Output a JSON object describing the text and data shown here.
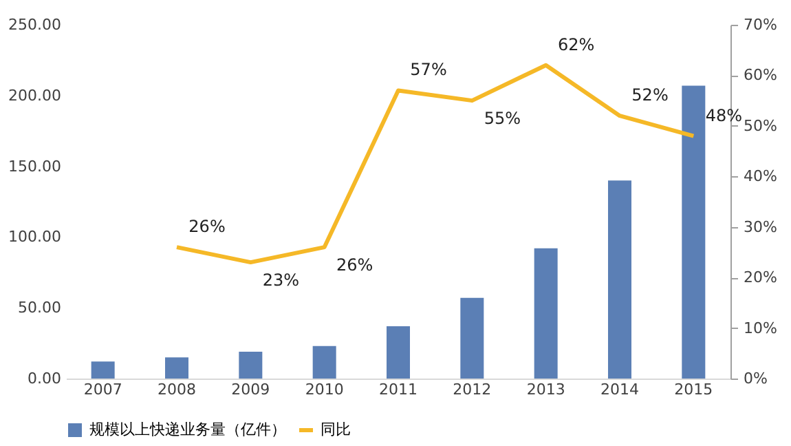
{
  "chart_data": {
    "type": "bar",
    "categories": [
      "2007",
      "2008",
      "2009",
      "2010",
      "2011",
      "2012",
      "2013",
      "2014",
      "2015"
    ],
    "series": [
      {
        "name": "规模以上快递业务量（亿件）",
        "color": "#5b7fb5",
        "values": [
          12,
          15,
          19,
          23,
          37,
          57,
          92,
          140,
          207
        ]
      },
      {
        "name": "同比",
        "type": "line",
        "axis": "y2",
        "color": "#f5b827",
        "values": [
          null,
          26,
          23,
          26,
          57,
          55,
          62,
          52,
          48
        ],
        "value_labels": [
          null,
          "26%",
          "23%",
          "26%",
          "57%",
          "55%",
          "62%",
          "52%",
          "48%"
        ]
      }
    ],
    "ylim": [
      0,
      250
    ],
    "yticks": [
      {
        "value": 0,
        "label": "0.00"
      },
      {
        "value": 50,
        "label": "50.00"
      },
      {
        "value": 100,
        "label": "100.00"
      },
      {
        "value": 150,
        "label": "150.00"
      },
      {
        "value": 200,
        "label": "200.00"
      },
      {
        "value": 250,
        "label": "250.00"
      }
    ],
    "y2lim": [
      0,
      70
    ],
    "y2ticks": [
      {
        "value": 0,
        "label": "0%"
      },
      {
        "value": 10,
        "label": "10%"
      },
      {
        "value": 20,
        "label": "20%"
      },
      {
        "value": 30,
        "label": "30%"
      },
      {
        "value": 40,
        "label": "40%"
      },
      {
        "value": 50,
        "label": "50%"
      },
      {
        "value": 60,
        "label": "60%"
      },
      {
        "value": 70,
        "label": "70%"
      }
    ],
    "grid": false,
    "legend": "bottom"
  }
}
